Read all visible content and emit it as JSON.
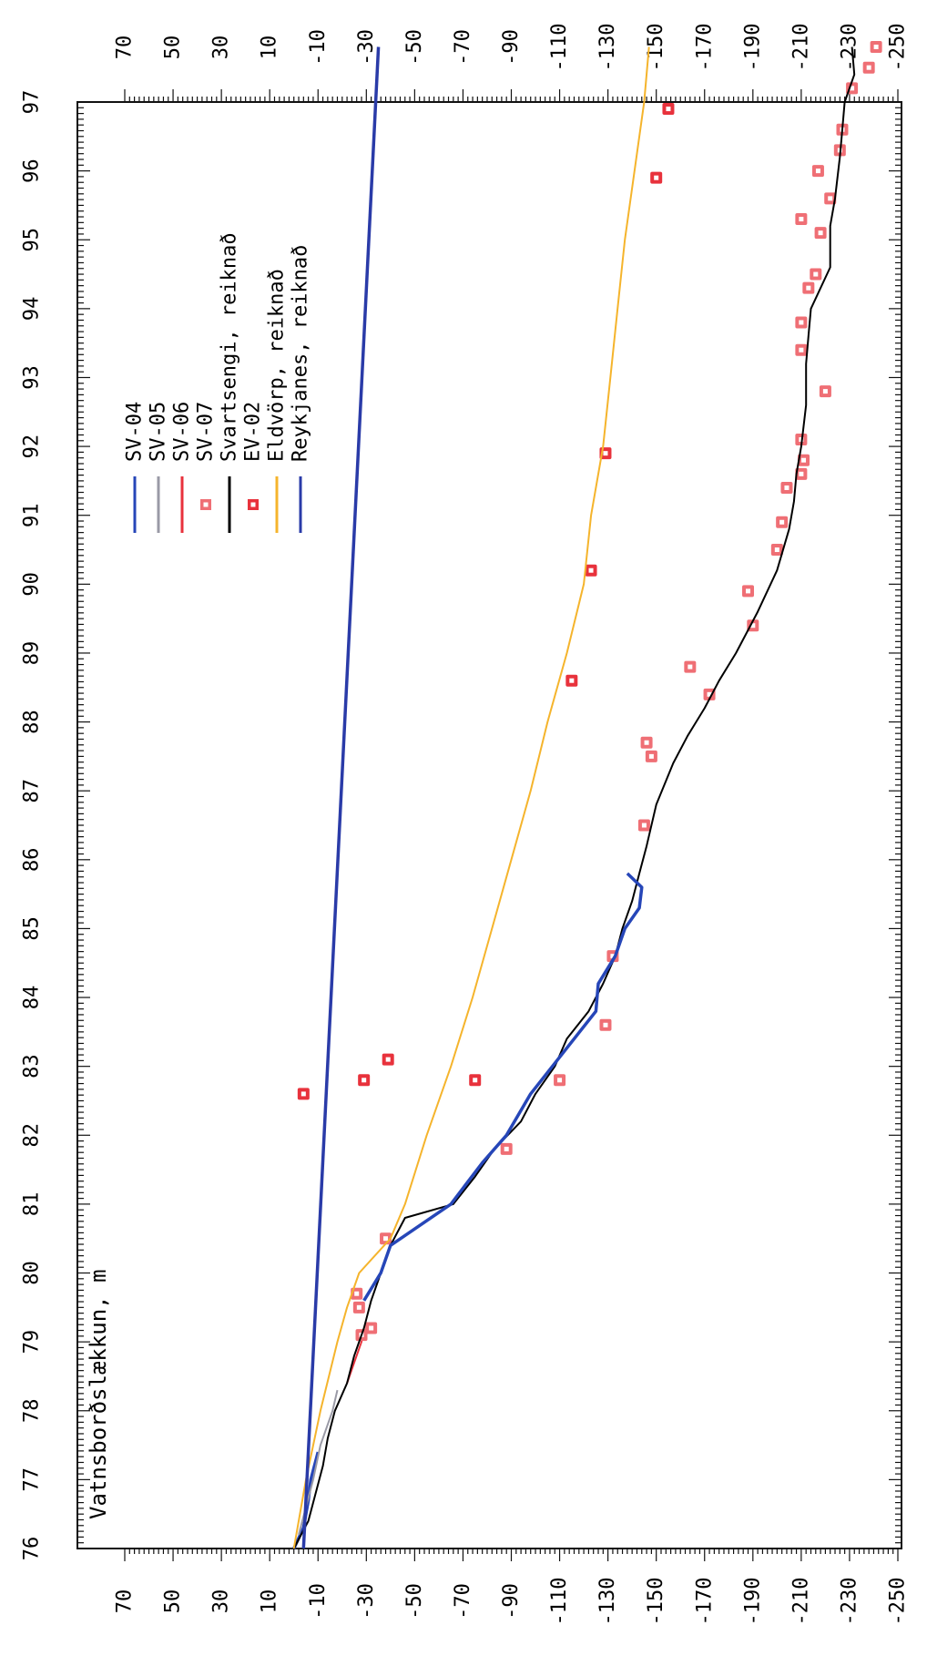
{
  "chart_data": {
    "type": "line",
    "title": "Vatnsborðslækkun, m",
    "x_axis": {
      "label": "",
      "range": [
        76,
        97
      ],
      "ticks": [
        "76",
        "77",
        "78",
        "79",
        "80",
        "81",
        "82",
        "83",
        "84",
        "85",
        "86",
        "87",
        "88",
        "89",
        "90",
        "91",
        "92",
        "93",
        "94",
        "95",
        "96",
        "97"
      ]
    },
    "y_axis": {
      "label": "",
      "range": [
        -250,
        70
      ],
      "ticks": [
        "70",
        "50",
        "30",
        "10",
        "-10",
        "-30",
        "-50",
        "-70",
        "-90",
        "-110",
        "-130",
        "-150",
        "-170",
        "-190",
        "-210",
        "-230",
        "-250"
      ]
    },
    "grid": false,
    "legend_placement": "top-left",
    "orientation_note": "page shown rotated 90 degrees",
    "series": [
      {
        "name": "SV-04",
        "kind": "line",
        "color": "#2646b8",
        "points": [
          [
            76.0,
            0
          ],
          [
            76.3,
            -4
          ],
          [
            76.7,
            -6
          ],
          [
            77.0,
            -7
          ],
          [
            77.4,
            -10
          ]
        ]
      },
      {
        "name": "SV-05",
        "kind": "line",
        "color": "#9a9aa6",
        "points": [
          [
            76.2,
            -2
          ],
          [
            76.6,
            -5
          ],
          [
            77.0,
            -8
          ],
          [
            77.5,
            -11
          ],
          [
            78.0,
            -16
          ],
          [
            78.3,
            -18
          ]
        ]
      },
      {
        "name": "SV-06",
        "kind": "line",
        "color": "#e8323c",
        "points": [
          [
            78.4,
            -22
          ],
          [
            78.7,
            -25
          ],
          [
            79.0,
            -28
          ],
          [
            79.2,
            -29
          ]
        ]
      },
      {
        "name": "SV-07",
        "kind": "marker",
        "color": "#ef6f75",
        "points": [
          [
            79.1,
            -28
          ],
          [
            79.2,
            -32
          ],
          [
            79.5,
            -27
          ],
          [
            79.7,
            -26
          ],
          [
            80.5,
            -38
          ],
          [
            81.8,
            -88
          ],
          [
            82.8,
            -110
          ],
          [
            83.6,
            -129
          ],
          [
            84.6,
            -132
          ],
          [
            86.5,
            -145
          ],
          [
            87.5,
            -148
          ],
          [
            87.7,
            -146
          ],
          [
            88.4,
            -172
          ],
          [
            88.8,
            -164
          ],
          [
            89.4,
            -190
          ],
          [
            89.9,
            -188
          ],
          [
            90.5,
            -200
          ],
          [
            90.9,
            -202
          ],
          [
            91.4,
            -204
          ],
          [
            91.6,
            -210
          ],
          [
            91.8,
            -211
          ],
          [
            92.1,
            -210
          ],
          [
            92.8,
            -220
          ],
          [
            93.4,
            -210
          ],
          [
            93.8,
            -210
          ],
          [
            94.3,
            -213
          ],
          [
            94.5,
            -216
          ],
          [
            95.1,
            -218
          ],
          [
            95.3,
            -210
          ],
          [
            95.6,
            -222
          ],
          [
            96.0,
            -217
          ],
          [
            96.3,
            -226
          ],
          [
            96.6,
            -227
          ],
          [
            97.2,
            -231
          ],
          [
            97.5,
            -238
          ],
          [
            97.8,
            -241
          ]
        ]
      },
      {
        "name": "Svartsengi, reiknað",
        "kind": "line",
        "color": "#000000",
        "points": [
          [
            76.0,
            0
          ],
          [
            76.4,
            -6
          ],
          [
            76.8,
            -9
          ],
          [
            77.2,
            -12
          ],
          [
            77.6,
            -14
          ],
          [
            78.0,
            -17
          ],
          [
            78.4,
            -22
          ],
          [
            78.8,
            -25
          ],
          [
            79.2,
            -29
          ],
          [
            79.6,
            -32
          ],
          [
            80.0,
            -36
          ],
          [
            80.4,
            -40
          ],
          [
            80.8,
            -46
          ],
          [
            81.0,
            -66
          ],
          [
            81.4,
            -75
          ],
          [
            81.8,
            -83
          ],
          [
            82.2,
            -94
          ],
          [
            82.6,
            -100
          ],
          [
            83.0,
            -108
          ],
          [
            83.4,
            -113
          ],
          [
            83.8,
            -122
          ],
          [
            84.2,
            -128
          ],
          [
            84.6,
            -133
          ],
          [
            85.0,
            -136
          ],
          [
            85.4,
            -140
          ],
          [
            85.8,
            -143
          ],
          [
            86.2,
            -146
          ],
          [
            86.8,
            -150
          ],
          [
            87.4,
            -157
          ],
          [
            87.8,
            -163
          ],
          [
            88.2,
            -170
          ],
          [
            88.6,
            -176
          ],
          [
            89.0,
            -183
          ],
          [
            89.6,
            -192
          ],
          [
            90.2,
            -200
          ],
          [
            90.8,
            -205
          ],
          [
            91.2,
            -207
          ],
          [
            91.6,
            -208
          ],
          [
            92.0,
            -210
          ],
          [
            92.6,
            -212
          ],
          [
            93.2,
            -212
          ],
          [
            93.6,
            -213
          ],
          [
            94.0,
            -214
          ],
          [
            94.6,
            -222
          ],
          [
            95.2,
            -222
          ],
          [
            95.6,
            -224
          ],
          [
            96.2,
            -226
          ],
          [
            96.6,
            -227
          ],
          [
            97.0,
            -228
          ],
          [
            97.4,
            -232
          ],
          [
            97.8,
            -231
          ]
        ]
      },
      {
        "name": "EV-02",
        "kind": "marker",
        "color": "#e8323c",
        "points": [
          [
            82.6,
            -4
          ],
          [
            82.8,
            -29
          ],
          [
            83.1,
            -39
          ],
          [
            82.8,
            -75
          ],
          [
            88.6,
            -115
          ],
          [
            90.2,
            -123
          ],
          [
            91.9,
            -129
          ],
          [
            95.9,
            -150
          ],
          [
            96.9,
            -155
          ]
        ]
      },
      {
        "name": "Eldvörp, reiknað",
        "kind": "line",
        "color": "#f5b42c",
        "points": [
          [
            76.0,
            0
          ],
          [
            77.0,
            -5
          ],
          [
            78.0,
            -11
          ],
          [
            79.0,
            -18
          ],
          [
            79.5,
            -22
          ],
          [
            80.0,
            -27
          ],
          [
            80.5,
            -40
          ],
          [
            81.0,
            -46
          ],
          [
            82.0,
            -55
          ],
          [
            83.0,
            -65
          ],
          [
            84.0,
            -74
          ],
          [
            85.0,
            -82
          ],
          [
            86.0,
            -90
          ],
          [
            87.0,
            -98
          ],
          [
            88.0,
            -105
          ],
          [
            89.0,
            -113
          ],
          [
            90.0,
            -120
          ],
          [
            91.0,
            -123
          ],
          [
            92.0,
            -128
          ],
          [
            93.0,
            -131
          ],
          [
            94.0,
            -134
          ],
          [
            95.0,
            -137
          ],
          [
            96.0,
            -141
          ],
          [
            97.0,
            -145
          ],
          [
            97.8,
            -147
          ]
        ]
      },
      {
        "name": "Reykjanes, reiknað",
        "kind": "line",
        "color": "#2a3ba8",
        "points": [
          [
            76.0,
            -4
          ],
          [
            97.8,
            -35
          ]
        ]
      },
      {
        "name": "SV-04 ",
        "kind": "line",
        "color": "#2646b8",
        "points": [
          [
            79.6,
            -29
          ],
          [
            80.0,
            -36
          ],
          [
            80.4,
            -40
          ],
          [
            81.0,
            -65
          ],
          [
            81.6,
            -78
          ],
          [
            82.0,
            -88
          ],
          [
            82.6,
            -98
          ],
          [
            83.0,
            -107
          ],
          [
            83.4,
            -116
          ],
          [
            83.8,
            -125
          ],
          [
            84.2,
            -126
          ],
          [
            84.6,
            -133
          ],
          [
            85.0,
            -137
          ],
          [
            85.3,
            -143
          ],
          [
            85.6,
            -144
          ],
          [
            85.8,
            -138
          ]
        ]
      }
    ]
  }
}
